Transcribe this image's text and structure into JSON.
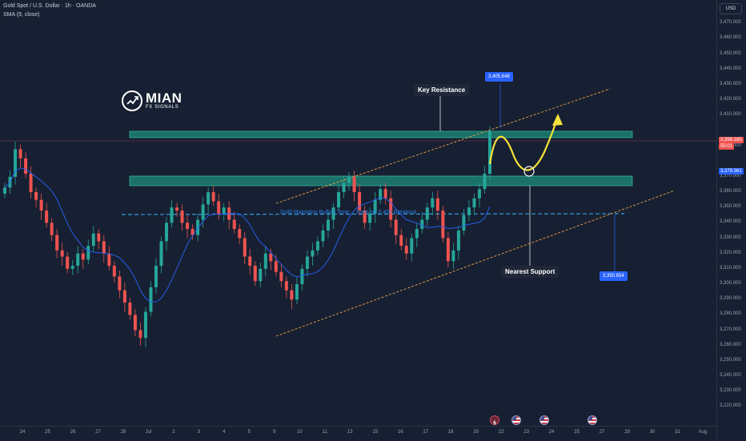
{
  "header": {
    "title": "Gold Spot / U.S. Dollar · 1h · OANDA",
    "indicator": "SMA (9, close)"
  },
  "currency_button": "USD",
  "logo": {
    "name": "MIAN",
    "tagline": "FX SIGNALS"
  },
  "annotations": {
    "key_resistance": "Key Resistance",
    "nearest_support": "Nearest Support",
    "line_label": "Gold Maintains Bullish Tone… Eyes on 3,400 Breakout",
    "resistance_price": "3,405.648",
    "support_price": "3,350.654"
  },
  "price_tags": {
    "current_price": "3,399.185",
    "countdown": "55:01",
    "sma_value": "3,379.361"
  },
  "colors": {
    "background": "#172032",
    "bull_candle": "#26a69a",
    "bear_candle": "#ef5350",
    "zone_fill": "#1e8c7a",
    "channel": "#f0a04b",
    "projection": "#f6e13a",
    "support_line": "#2f9be1"
  },
  "events": [
    "lightning-event-icon",
    "us-flag-event-icon",
    "us-flag-event-icon",
    "us-flag-event-icon"
  ],
  "chart_data": {
    "type": "candlestick",
    "title": "Gold Spot / U.S. Dollar · 1h · OANDA",
    "ylim": [
      3215,
      3480
    ],
    "y_ticks": [
      "3,470.000",
      "3,460.000",
      "3,450.000",
      "3,440.000",
      "3,430.000",
      "3,420.000",
      "3,410.000",
      "3,390.000",
      "3,370.000",
      "3,360.000",
      "3,350.000",
      "3,340.000",
      "3,330.000",
      "3,320.000",
      "3,310.000",
      "3,300.000",
      "3,290.000",
      "3,280.000",
      "3,270.000",
      "3,260.000",
      "3,250.000",
      "3,240.000",
      "3,230.000",
      "3,220.000"
    ],
    "x_ticks": [
      "24",
      "25",
      "26",
      "27",
      "29",
      "Jul",
      "2",
      "3",
      "4",
      "5",
      "9",
      "10",
      "11",
      "13",
      "15",
      "16",
      "17",
      "18",
      "20",
      "22",
      "23",
      "24",
      "25",
      "27",
      "29",
      "30",
      "31",
      "Aug"
    ],
    "closes": [
      3363,
      3370,
      3388,
      3382,
      3372,
      3360,
      3355,
      3348,
      3340,
      3332,
      3322,
      3318,
      3310,
      3312,
      3320,
      3316,
      3325,
      3333,
      3328,
      3320,
      3312,
      3305,
      3296,
      3288,
      3280,
      3270,
      3265,
      3282,
      3298,
      3312,
      3328,
      3340,
      3350,
      3348,
      3340,
      3336,
      3332,
      3342,
      3352,
      3360,
      3354,
      3346,
      3350,
      3342,
      3336,
      3330,
      3318,
      3312,
      3302,
      3310,
      3320,
      3315,
      3308,
      3302,
      3296,
      3290,
      3300,
      3310,
      3318,
      3322,
      3328,
      3335,
      3342,
      3350,
      3360,
      3366,
      3370,
      3360,
      3348,
      3340,
      3346,
      3355,
      3362,
      3356,
      3342,
      3332,
      3325,
      3320,
      3330,
      3336,
      3342,
      3350,
      3356,
      3348,
      3330,
      3315,
      3322,
      3335,
      3345,
      3350,
      3356,
      3362,
      3372,
      3400
    ],
    "sma_values_note": "",
    "zones": [
      {
        "label": "Key Resistance",
        "low": 3399,
        "high": 3402
      },
      {
        "label": "Nearest Support",
        "low": 3370,
        "high": 3376
      }
    ],
    "horizontal_line": {
      "label": "Gold Maintains Bullish Tone… Eyes on 3,400 Breakout",
      "value": 3350.654
    },
    "marked_prices": [
      3405.648,
      3350.654,
      3399.185,
      3379.361
    ]
  }
}
